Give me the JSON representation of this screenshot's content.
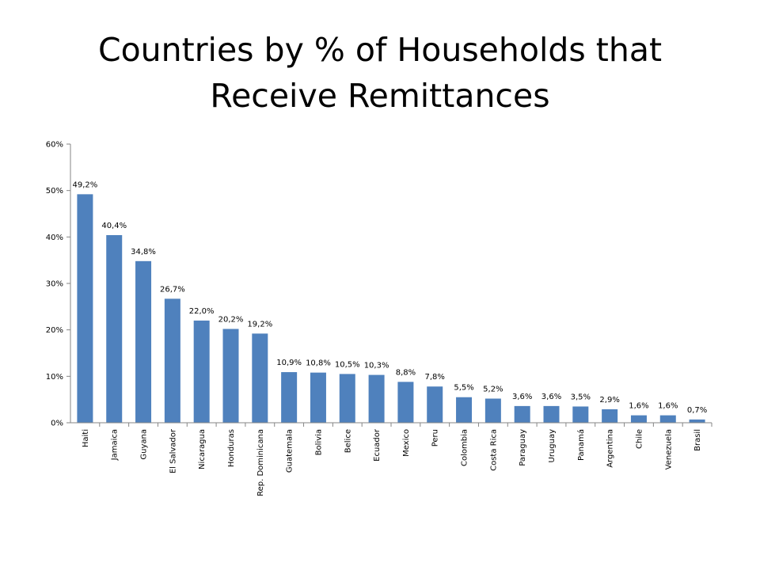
{
  "title": {
    "line1": "Countries by % of Households that",
    "line2": "Receive Remittances"
  },
  "chart_data": {
    "type": "bar",
    "title": "Countries by % of Households that Receive Remittances",
    "xlabel": "",
    "ylabel": "",
    "ylim": [
      0,
      60
    ],
    "yticks": [
      "0%",
      "10%",
      "20%",
      "30%",
      "40%",
      "50%",
      "60%"
    ],
    "grid": false,
    "legend": "none",
    "bar_color": "#4F81BD",
    "categories": [
      "Haiti",
      "Jamaica",
      "Guyana",
      "El Salvador",
      "Nicaragua",
      "Honduras",
      "Rep. Dominicana",
      "Guatemala",
      "Bolivia",
      "Belice",
      "Ecuador",
      "Mexico",
      "Peru",
      "Colombia",
      "Costa Rica",
      "Paraguay",
      "Uruguay",
      "Panamá",
      "Argentina",
      "Chile",
      "Venezuela",
      "Brasil"
    ],
    "values": [
      49.2,
      40.4,
      34.8,
      26.7,
      22.0,
      20.2,
      19.2,
      10.9,
      10.8,
      10.5,
      10.3,
      8.8,
      7.8,
      5.5,
      5.2,
      3.6,
      3.6,
      3.5,
      2.9,
      1.6,
      1.6,
      0.7
    ],
    "data_labels": [
      "49,2%",
      "40,4%",
      "34,8%",
      "26,7%",
      "22,0%",
      "20,2%",
      "19,2%",
      "10,9%",
      "10,8%",
      "10,5%",
      "10,3%",
      "8,8%",
      "7,8%",
      "5,5%",
      "5,2%",
      "3,6%",
      "3,6%",
      "3,5%",
      "2,9%",
      "1,6%",
      "1,6%",
      "0,7%"
    ]
  }
}
